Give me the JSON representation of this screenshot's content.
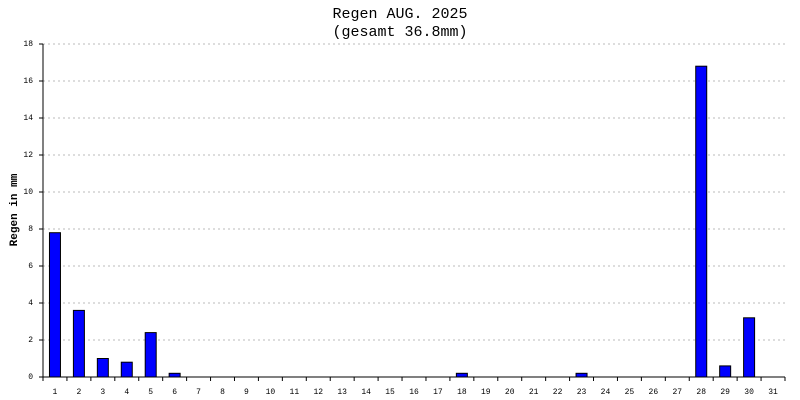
{
  "chart_data": {
    "type": "bar",
    "title": "Regen AUG. 2025",
    "subtitle": "(gesamt 36.8mm)",
    "y_label": "Regen in mm",
    "categories": [
      "1",
      "2",
      "3",
      "4",
      "5",
      "6",
      "7",
      "8",
      "9",
      "10",
      "11",
      "12",
      "13",
      "14",
      "15",
      "16",
      "17",
      "18",
      "19",
      "20",
      "21",
      "22",
      "23",
      "24",
      "25",
      "26",
      "27",
      "28",
      "29",
      "30",
      "31"
    ],
    "values": [
      7.8,
      3.6,
      1.0,
      0.8,
      2.4,
      0.2,
      0,
      0,
      0,
      0,
      0,
      0,
      0,
      0,
      0,
      0,
      0,
      0.2,
      0,
      0,
      0,
      0,
      0.2,
      0,
      0,
      0,
      0,
      16.8,
      0.6,
      3.2,
      0
    ],
    "color": "#0000ff",
    "ylim": [
      0,
      18
    ],
    "yticks": [
      0,
      2,
      4,
      6,
      8,
      10,
      12,
      14,
      16,
      18
    ],
    "grid": true
  }
}
